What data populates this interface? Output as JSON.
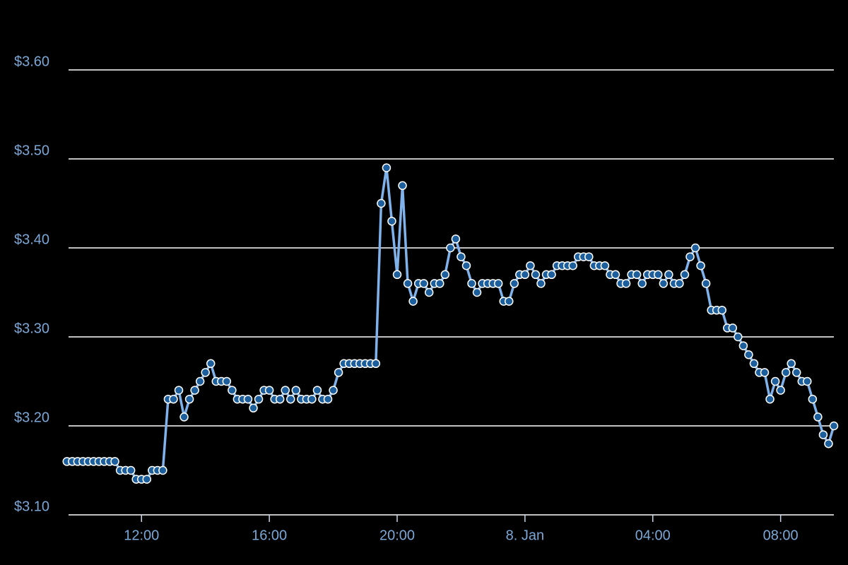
{
  "chart_data": {
    "type": "line",
    "color": "#7fb2ea",
    "marker_color": "#1d5f9c",
    "grid": true,
    "x": [
      -860,
      -850,
      -840,
      -830,
      -820,
      -810,
      -800,
      -790,
      -780,
      -770,
      -760,
      -750,
      -740,
      -730,
      -720,
      -710,
      -700,
      -690,
      -680,
      -670,
      -660,
      -650,
      -640,
      -630,
      -620,
      -610,
      -600,
      -590,
      -580,
      -570,
      -560,
      -550,
      -540,
      -530,
      -520,
      -510,
      -500,
      -490,
      -480,
      -470,
      -460,
      -450,
      -440,
      -430,
      -420,
      -410,
      -400,
      -390,
      -380,
      -370,
      -360,
      -350,
      -340,
      -330,
      -320,
      -310,
      -300,
      -290,
      -280,
      -270,
      -260,
      -250,
      -240,
      -230,
      -220,
      -210,
      -200,
      -190,
      -180,
      -170,
      -160,
      -150,
      -140,
      -130,
      -120,
      -110,
      -100,
      -90,
      -80,
      -70,
      -60,
      -50,
      -40,
      -30,
      -20,
      -10,
      0,
      10,
      20,
      30,
      40,
      50,
      60,
      70,
      80,
      90,
      100,
      110,
      120,
      130,
      140,
      150,
      160,
      170,
      180,
      190,
      200,
      210,
      220,
      230,
      240,
      250,
      260,
      270,
      280,
      290,
      300,
      310,
      320,
      330,
      340,
      350,
      360,
      370,
      380,
      390,
      400,
      410,
      420,
      430,
      440,
      450,
      460,
      470,
      480,
      490,
      500,
      510,
      520,
      530,
      540,
      550,
      560,
      570,
      580
    ],
    "values": [
      3.16,
      3.16,
      3.16,
      3.16,
      3.16,
      3.16,
      3.16,
      3.16,
      3.16,
      3.16,
      3.15,
      3.15,
      3.15,
      3.14,
      3.14,
      3.14,
      3.15,
      3.15,
      3.15,
      3.23,
      3.23,
      3.24,
      3.21,
      3.23,
      3.24,
      3.25,
      3.26,
      3.27,
      3.25,
      3.25,
      3.25,
      3.24,
      3.23,
      3.23,
      3.23,
      3.22,
      3.23,
      3.24,
      3.24,
      3.23,
      3.23,
      3.24,
      3.23,
      3.24,
      3.23,
      3.23,
      3.23,
      3.24,
      3.23,
      3.23,
      3.24,
      3.26,
      3.27,
      3.27,
      3.27,
      3.27,
      3.27,
      3.27,
      3.27,
      3.45,
      3.49,
      3.43,
      3.37,
      3.47,
      3.36,
      3.34,
      3.36,
      3.36,
      3.35,
      3.36,
      3.36,
      3.37,
      3.4,
      3.41,
      3.39,
      3.38,
      3.36,
      3.35,
      3.36,
      3.36,
      3.36,
      3.36,
      3.34,
      3.34,
      3.36,
      3.37,
      3.37,
      3.38,
      3.37,
      3.36,
      3.37,
      3.37,
      3.38,
      3.38,
      3.38,
      3.38,
      3.39,
      3.39,
      3.39,
      3.38,
      3.38,
      3.38,
      3.37,
      3.37,
      3.36,
      3.36,
      3.37,
      3.37,
      3.36,
      3.37,
      3.37,
      3.37,
      3.36,
      3.37,
      3.36,
      3.36,
      3.37,
      3.39,
      3.4,
      3.38,
      3.36,
      3.33,
      3.33,
      3.33,
      3.31,
      3.31,
      3.3,
      3.29,
      3.28,
      3.27,
      3.26,
      3.26,
      3.23,
      3.25,
      3.24,
      3.26,
      3.27,
      3.26,
      3.25,
      3.25,
      3.23,
      3.21,
      3.19,
      3.18,
      3.2
    ],
    "xlim": [
      -857,
      580
    ],
    "xticks": [
      {
        "value": -720,
        "label": "12:00"
      },
      {
        "value": -480,
        "label": "16:00"
      },
      {
        "value": -240,
        "label": "20:00"
      },
      {
        "value": 0,
        "label": "8. Jan"
      },
      {
        "value": 240,
        "label": "04:00"
      },
      {
        "value": 480,
        "label": "08:00"
      }
    ],
    "ylim": [
      3.1,
      3.6
    ],
    "yticks": [
      {
        "value": 3.1,
        "label": "$3.10"
      },
      {
        "value": 3.2,
        "label": "$3.20"
      },
      {
        "value": 3.3,
        "label": "$3.30"
      },
      {
        "value": 3.4,
        "label": "$3.40"
      },
      {
        "value": 3.5,
        "label": "$3.50"
      },
      {
        "value": 3.6,
        "label": "$3.60"
      }
    ]
  }
}
